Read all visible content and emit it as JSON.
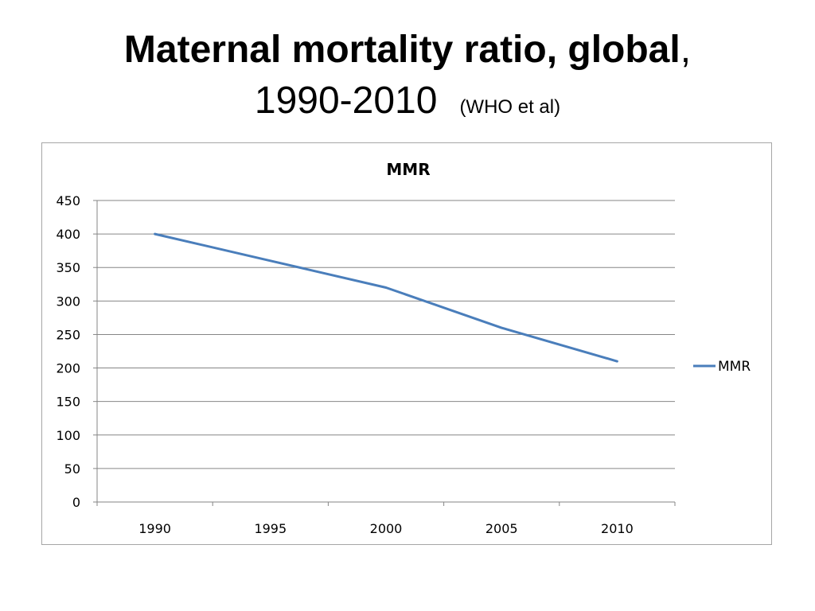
{
  "slide": {
    "title_bold": "Maternal mortality ratio, global",
    "title_comma": ",",
    "title_years": "1990-2010",
    "title_source": "(WHO et al)"
  },
  "chart_data": {
    "type": "line",
    "title": "MMR",
    "categories": [
      "1990",
      "1995",
      "2000",
      "2005",
      "2010"
    ],
    "series": [
      {
        "name": "MMR",
        "values": [
          400,
          360,
          320,
          260,
          210
        ],
        "color": "#4a7ebb"
      }
    ],
    "ylim": [
      0,
      450
    ],
    "yticks": [
      0,
      50,
      100,
      150,
      200,
      250,
      300,
      350,
      400,
      450
    ],
    "xlabel": "",
    "ylabel": "",
    "grid": true,
    "legend_position": "right",
    "gridline_color": "#868686",
    "axis_color": "#868686"
  }
}
